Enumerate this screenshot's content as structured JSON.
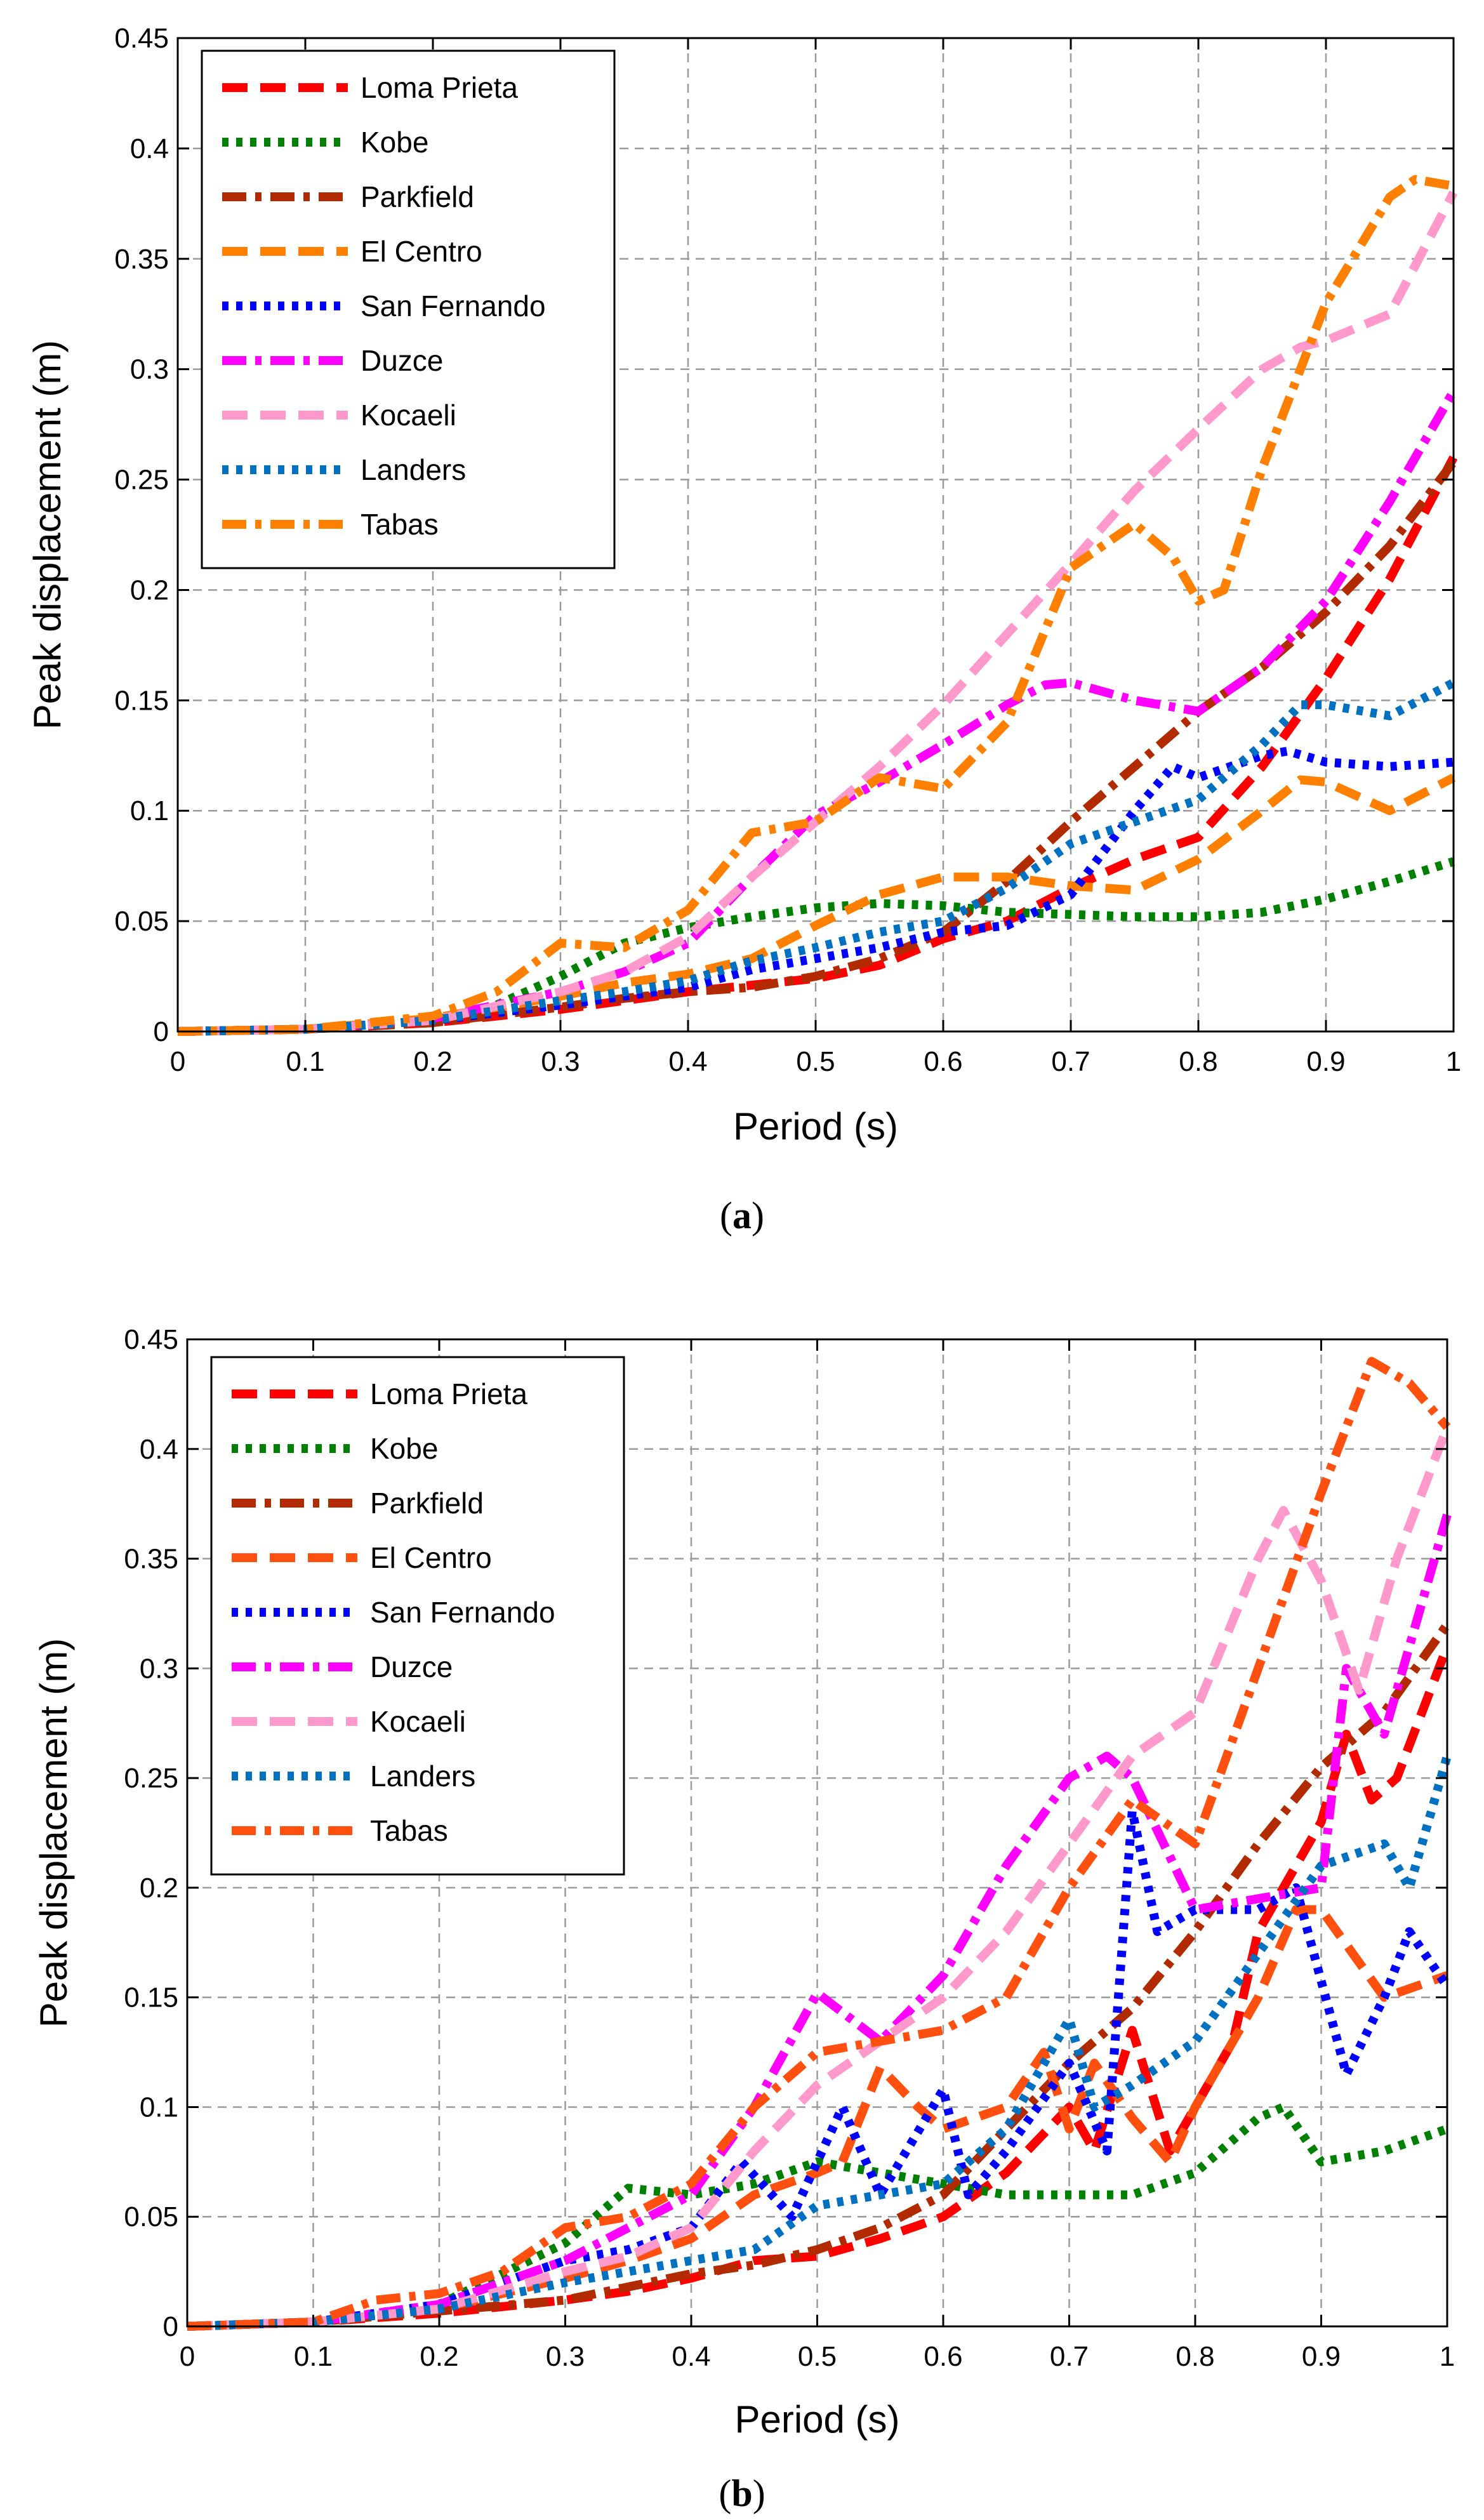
{
  "chart_data": [
    {
      "type": "line",
      "caption": "(a)",
      "caption_open": "(",
      "caption_letter": "a",
      "caption_close": ")",
      "xlabel": "Period (s)",
      "ylabel": "Peak displacement (m)",
      "xlim": [
        0,
        1
      ],
      "ylim": [
        0,
        0.45
      ],
      "xticks": [
        "0",
        "0.1",
        "0.2",
        "0.3",
        "0.4",
        "0.5",
        "0.6",
        "0.7",
        "0.8",
        "0.9",
        "1"
      ],
      "yticks": [
        "0",
        "0.05",
        "0.1",
        "0.15",
        "0.2",
        "0.25",
        "0.3",
        "0.35",
        "0.4",
        "0.45"
      ],
      "grid": true,
      "legend_position": "top-left",
      "series": [
        {
          "name": "Loma Prieta",
          "color": "#ff0000",
          "style": "dash",
          "x": [
            0,
            0.1,
            0.2,
            0.3,
            0.35,
            0.4,
            0.45,
            0.5,
            0.55,
            0.6,
            0.65,
            0.7,
            0.75,
            0.8,
            0.85,
            0.9,
            0.95,
            1.0
          ],
          "y": [
            0,
            0.001,
            0.004,
            0.01,
            0.014,
            0.018,
            0.021,
            0.024,
            0.03,
            0.042,
            0.05,
            0.065,
            0.078,
            0.088,
            0.12,
            0.16,
            0.205,
            0.26
          ]
        },
        {
          "name": "Kobe",
          "color": "#008000",
          "style": "dot",
          "x": [
            0,
            0.1,
            0.2,
            0.25,
            0.3,
            0.35,
            0.4,
            0.45,
            0.5,
            0.55,
            0.6,
            0.65,
            0.7,
            0.75,
            0.8,
            0.85,
            0.9,
            0.95,
            1.0
          ],
          "y": [
            0,
            0.001,
            0.005,
            0.012,
            0.025,
            0.04,
            0.047,
            0.052,
            0.056,
            0.058,
            0.057,
            0.054,
            0.053,
            0.052,
            0.052,
            0.054,
            0.06,
            0.068,
            0.077
          ]
        },
        {
          "name": "Parkfield",
          "color": "#b22a00",
          "style": "dashdot",
          "x": [
            0,
            0.1,
            0.2,
            0.3,
            0.35,
            0.4,
            0.45,
            0.5,
            0.55,
            0.6,
            0.65,
            0.7,
            0.75,
            0.8,
            0.85,
            0.9,
            0.95,
            1.0
          ],
          "y": [
            0,
            0.001,
            0.004,
            0.011,
            0.015,
            0.018,
            0.02,
            0.025,
            0.033,
            0.045,
            0.068,
            0.095,
            0.12,
            0.145,
            0.165,
            0.19,
            0.22,
            0.258
          ]
        },
        {
          "name": "El Centro",
          "color": "#ff8000",
          "style": "dash",
          "x": [
            0,
            0.1,
            0.2,
            0.3,
            0.35,
            0.4,
            0.45,
            0.5,
            0.55,
            0.6,
            0.65,
            0.7,
            0.75,
            0.8,
            0.85,
            0.88,
            0.9,
            0.95,
            1.0
          ],
          "y": [
            0,
            0.001,
            0.006,
            0.016,
            0.022,
            0.026,
            0.033,
            0.048,
            0.062,
            0.07,
            0.07,
            0.066,
            0.064,
            0.078,
            0.1,
            0.114,
            0.113,
            0.1,
            0.115
          ]
        },
        {
          "name": "San Fernando",
          "color": "#0000ff",
          "style": "dot",
          "x": [
            0,
            0.1,
            0.2,
            0.3,
            0.35,
            0.4,
            0.45,
            0.5,
            0.55,
            0.6,
            0.65,
            0.7,
            0.75,
            0.78,
            0.8,
            0.85,
            0.87,
            0.9,
            0.95,
            1.0
          ],
          "y": [
            0,
            0.001,
            0.005,
            0.012,
            0.016,
            0.02,
            0.028,
            0.033,
            0.038,
            0.045,
            0.048,
            0.062,
            0.1,
            0.12,
            0.115,
            0.125,
            0.127,
            0.122,
            0.12,
            0.122
          ]
        },
        {
          "name": "Duzce",
          "color": "#ff00ff",
          "style": "dashdot",
          "x": [
            0,
            0.1,
            0.2,
            0.3,
            0.35,
            0.4,
            0.45,
            0.5,
            0.55,
            0.6,
            0.65,
            0.68,
            0.7,
            0.75,
            0.8,
            0.85,
            0.9,
            0.95,
            1.0
          ],
          "y": [
            0,
            0.001,
            0.006,
            0.018,
            0.027,
            0.04,
            0.07,
            0.098,
            0.113,
            0.13,
            0.148,
            0.157,
            0.158,
            0.15,
            0.145,
            0.165,
            0.195,
            0.24,
            0.29
          ]
        },
        {
          "name": "Kocaeli",
          "color": "#ff99cc",
          "style": "dash",
          "x": [
            0,
            0.1,
            0.2,
            0.3,
            0.35,
            0.4,
            0.45,
            0.5,
            0.55,
            0.6,
            0.65,
            0.7,
            0.75,
            0.8,
            0.85,
            0.88,
            0.9,
            0.95,
            1.0
          ],
          "y": [
            0,
            0.001,
            0.005,
            0.018,
            0.027,
            0.043,
            0.07,
            0.095,
            0.12,
            0.148,
            0.18,
            0.212,
            0.245,
            0.273,
            0.3,
            0.31,
            0.313,
            0.325,
            0.38
          ]
        },
        {
          "name": "Landers",
          "color": "#0070c0",
          "style": "dot",
          "x": [
            0,
            0.1,
            0.2,
            0.3,
            0.35,
            0.4,
            0.45,
            0.5,
            0.55,
            0.6,
            0.65,
            0.7,
            0.75,
            0.8,
            0.85,
            0.88,
            0.9,
            0.95,
            1.0
          ],
          "y": [
            0,
            0.001,
            0.005,
            0.014,
            0.018,
            0.023,
            0.032,
            0.038,
            0.045,
            0.05,
            0.065,
            0.085,
            0.095,
            0.105,
            0.13,
            0.148,
            0.148,
            0.143,
            0.158
          ]
        },
        {
          "name": "Tabas",
          "color": "#ff8000",
          "style": "dashdot",
          "x": [
            0,
            0.1,
            0.2,
            0.25,
            0.3,
            0.35,
            0.4,
            0.45,
            0.5,
            0.55,
            0.6,
            0.65,
            0.7,
            0.75,
            0.78,
            0.8,
            0.82,
            0.85,
            0.9,
            0.95,
            0.97,
            1.0
          ],
          "y": [
            0,
            0.001,
            0.007,
            0.018,
            0.04,
            0.038,
            0.055,
            0.09,
            0.095,
            0.115,
            0.11,
            0.14,
            0.21,
            0.23,
            0.215,
            0.195,
            0.2,
            0.255,
            0.33,
            0.378,
            0.386,
            0.383
          ]
        }
      ]
    },
    {
      "type": "line",
      "caption": "(b)",
      "caption_open": "(",
      "caption_letter": "b",
      "caption_close": ")",
      "xlabel": "Period (s)",
      "ylabel": "Peak displacement (m)",
      "xlim": [
        0,
        1
      ],
      "ylim": [
        0,
        0.45
      ],
      "xticks": [
        "0",
        "0.1",
        "0.2",
        "0.3",
        "0.4",
        "0.5",
        "0.6",
        "0.7",
        "0.8",
        "0.9",
        "1"
      ],
      "yticks": [
        "0",
        "0.05",
        "0.1",
        "0.15",
        "0.2",
        "0.25",
        "0.3",
        "0.35",
        "0.4",
        "0.45"
      ],
      "grid": true,
      "legend_position": "top-left",
      "series": [
        {
          "name": "Loma Prieta",
          "color": "#ff0000",
          "style": "dash",
          "x": [
            0,
            0.1,
            0.2,
            0.3,
            0.35,
            0.4,
            0.45,
            0.5,
            0.55,
            0.6,
            0.65,
            0.7,
            0.72,
            0.75,
            0.78,
            0.8,
            0.83,
            0.85,
            0.88,
            0.9,
            0.92,
            0.94,
            0.96,
            1.0
          ],
          "y": [
            0,
            0.002,
            0.006,
            0.012,
            0.016,
            0.022,
            0.03,
            0.032,
            0.04,
            0.05,
            0.07,
            0.1,
            0.08,
            0.135,
            0.08,
            0.1,
            0.13,
            0.18,
            0.21,
            0.23,
            0.27,
            0.24,
            0.25,
            0.31
          ]
        },
        {
          "name": "Kobe",
          "color": "#008000",
          "style": "dot",
          "x": [
            0,
            0.1,
            0.2,
            0.3,
            0.35,
            0.4,
            0.45,
            0.5,
            0.55,
            0.6,
            0.65,
            0.7,
            0.75,
            0.8,
            0.85,
            0.87,
            0.9,
            0.95,
            1.0
          ],
          "y": [
            0,
            0.002,
            0.01,
            0.038,
            0.063,
            0.06,
            0.065,
            0.075,
            0.07,
            0.065,
            0.06,
            0.06,
            0.06,
            0.07,
            0.095,
            0.1,
            0.075,
            0.08,
            0.09
          ]
        },
        {
          "name": "Parkfield",
          "color": "#b22a00",
          "style": "dashdot",
          "x": [
            0,
            0.1,
            0.2,
            0.3,
            0.35,
            0.4,
            0.45,
            0.5,
            0.55,
            0.6,
            0.65,
            0.7,
            0.75,
            0.8,
            0.85,
            0.9,
            0.95,
            1.0
          ],
          "y": [
            0,
            0.002,
            0.007,
            0.012,
            0.018,
            0.024,
            0.028,
            0.035,
            0.045,
            0.06,
            0.09,
            0.12,
            0.145,
            0.18,
            0.22,
            0.255,
            0.28,
            0.32
          ]
        },
        {
          "name": "El Centro",
          "color": "#ff5010",
          "style": "dash",
          "x": [
            0,
            0.1,
            0.2,
            0.3,
            0.35,
            0.4,
            0.45,
            0.5,
            0.52,
            0.55,
            0.58,
            0.6,
            0.65,
            0.68,
            0.7,
            0.72,
            0.75,
            0.78,
            0.8,
            0.85,
            0.88,
            0.9,
            0.95,
            1.0
          ],
          "y": [
            0,
            0.002,
            0.008,
            0.022,
            0.03,
            0.04,
            0.06,
            0.07,
            0.075,
            0.118,
            0.1,
            0.09,
            0.1,
            0.125,
            0.09,
            0.12,
            0.095,
            0.075,
            0.1,
            0.15,
            0.19,
            0.19,
            0.15,
            0.16
          ]
        },
        {
          "name": "San Fernando",
          "color": "#0000ff",
          "style": "dot",
          "x": [
            0,
            0.1,
            0.2,
            0.3,
            0.35,
            0.4,
            0.44,
            0.48,
            0.52,
            0.55,
            0.6,
            0.62,
            0.65,
            0.7,
            0.73,
            0.75,
            0.77,
            0.8,
            0.85,
            0.88,
            0.92,
            0.95,
            0.97,
            1.0
          ],
          "y": [
            0,
            0.002,
            0.01,
            0.03,
            0.035,
            0.045,
            0.075,
            0.05,
            0.1,
            0.06,
            0.108,
            0.06,
            0.08,
            0.12,
            0.08,
            0.235,
            0.18,
            0.19,
            0.19,
            0.2,
            0.115,
            0.15,
            0.18,
            0.155
          ]
        },
        {
          "name": "Duzce",
          "color": "#ff00ff",
          "style": "dashdot",
          "x": [
            0,
            0.1,
            0.2,
            0.3,
            0.35,
            0.4,
            0.45,
            0.5,
            0.55,
            0.6,
            0.65,
            0.7,
            0.73,
            0.75,
            0.8,
            0.85,
            0.9,
            0.92,
            0.95,
            1.0
          ],
          "y": [
            0,
            0.002,
            0.01,
            0.03,
            0.045,
            0.06,
            0.1,
            0.152,
            0.13,
            0.16,
            0.21,
            0.25,
            0.26,
            0.25,
            0.19,
            0.195,
            0.2,
            0.3,
            0.27,
            0.37
          ]
        },
        {
          "name": "Kocaeli",
          "color": "#ff99cc",
          "style": "dash",
          "x": [
            0,
            0.1,
            0.2,
            0.3,
            0.35,
            0.4,
            0.45,
            0.5,
            0.55,
            0.6,
            0.65,
            0.7,
            0.75,
            0.8,
            0.85,
            0.87,
            0.9,
            0.93,
            0.96,
            1.0
          ],
          "y": [
            0,
            0.002,
            0.008,
            0.025,
            0.032,
            0.045,
            0.08,
            0.11,
            0.13,
            0.15,
            0.18,
            0.22,
            0.26,
            0.28,
            0.35,
            0.372,
            0.34,
            0.29,
            0.35,
            0.41
          ]
        },
        {
          "name": "Landers",
          "color": "#0070c0",
          "style": "dot",
          "x": [
            0,
            0.1,
            0.2,
            0.3,
            0.35,
            0.4,
            0.45,
            0.5,
            0.55,
            0.6,
            0.65,
            0.7,
            0.72,
            0.75,
            0.8,
            0.85,
            0.9,
            0.95,
            0.97,
            1.0
          ],
          "y": [
            0,
            0.002,
            0.008,
            0.02,
            0.025,
            0.03,
            0.035,
            0.055,
            0.06,
            0.065,
            0.09,
            0.14,
            0.1,
            0.11,
            0.13,
            0.17,
            0.21,
            0.22,
            0.2,
            0.26
          ]
        },
        {
          "name": "Tabas",
          "color": "#ff5010",
          "style": "dashdot",
          "x": [
            0,
            0.1,
            0.15,
            0.2,
            0.25,
            0.3,
            0.35,
            0.4,
            0.45,
            0.5,
            0.55,
            0.6,
            0.65,
            0.7,
            0.75,
            0.8,
            0.85,
            0.9,
            0.94,
            0.97,
            1.0
          ],
          "y": [
            0,
            0.002,
            0.012,
            0.015,
            0.025,
            0.045,
            0.05,
            0.065,
            0.1,
            0.125,
            0.13,
            0.135,
            0.15,
            0.2,
            0.24,
            0.22,
            0.3,
            0.38,
            0.44,
            0.43,
            0.41
          ]
        }
      ]
    }
  ]
}
